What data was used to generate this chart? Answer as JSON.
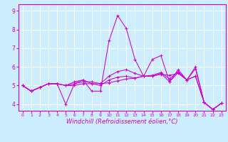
{
  "xlabel": "Windchill (Refroidissement éolien,°C)",
  "bg_color": "#cceeff",
  "grid_color": "#ffffff",
  "line_color": "#cc00cc",
  "x_ticks": [
    0,
    1,
    2,
    3,
    4,
    5,
    6,
    7,
    8,
    9,
    10,
    11,
    12,
    13,
    14,
    15,
    16,
    17,
    18,
    19,
    20,
    21,
    22,
    23
  ],
  "y_ticks": [
    4,
    5,
    6,
    7,
    8,
    9
  ],
  "ylim": [
    3.65,
    9.35
  ],
  "xlim": [
    -0.5,
    23.5
  ],
  "lines": [
    [
      5.0,
      4.7,
      4.9,
      5.1,
      5.1,
      4.0,
      5.1,
      5.3,
      4.7,
      4.7,
      7.4,
      8.75,
      8.05,
      6.4,
      5.5,
      6.4,
      6.6,
      5.2,
      5.85,
      5.3,
      6.0,
      4.1,
      3.72,
      4.05
    ],
    [
      5.0,
      4.7,
      4.9,
      5.1,
      5.1,
      5.0,
      5.0,
      5.1,
      5.1,
      5.1,
      5.15,
      5.25,
      5.35,
      5.4,
      5.5,
      5.5,
      5.6,
      5.55,
      5.65,
      5.3,
      5.5,
      4.1,
      3.72,
      4.05
    ],
    [
      5.0,
      4.7,
      4.9,
      5.1,
      5.1,
      5.0,
      5.1,
      5.2,
      5.2,
      5.1,
      5.5,
      5.75,
      5.85,
      5.65,
      5.5,
      5.55,
      5.7,
      5.35,
      5.75,
      5.3,
      5.9,
      4.1,
      3.72,
      4.05
    ],
    [
      5.0,
      4.7,
      4.9,
      5.1,
      5.1,
      5.0,
      5.2,
      5.3,
      5.1,
      5.0,
      5.3,
      5.45,
      5.5,
      5.4,
      5.5,
      5.5,
      5.65,
      5.2,
      5.7,
      5.3,
      5.5,
      4.1,
      3.72,
      4.05
    ]
  ],
  "tick_fontsize": 5.5,
  "xlabel_fontsize": 6.0
}
